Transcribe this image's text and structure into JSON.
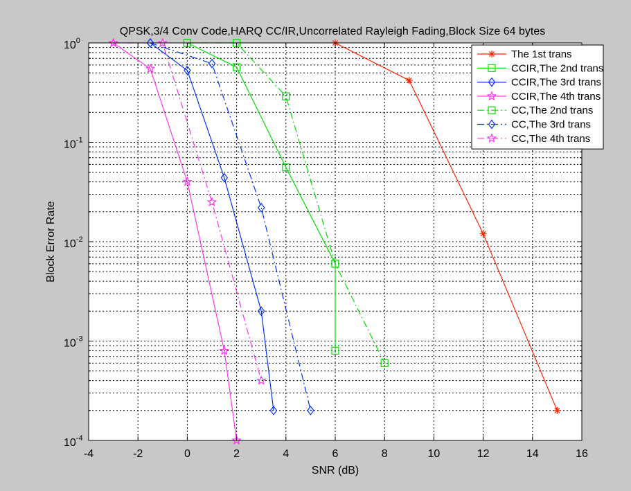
{
  "chart_data": {
    "type": "line",
    "title": "QPSK,3/4 Conv Code,HARQ CC/IR,Uncorrelated Rayleigh Fading,Block Size 64 bytes",
    "xlabel": "SNR (dB)",
    "ylabel": "Block Error Rate",
    "xlim": [
      -4,
      16
    ],
    "ylim": [
      0.0001,
      1
    ],
    "yscale": "log",
    "grid": true,
    "legend_position": "top-right",
    "x_ticks": [
      -4,
      -2,
      0,
      2,
      4,
      6,
      8,
      10,
      12,
      14,
      16
    ],
    "x_tick_labels": [
      "-4",
      "-2",
      "0",
      "2",
      "4",
      "6",
      "8",
      "10",
      "12",
      "14",
      "16"
    ],
    "y_ticks": [
      {
        "value": 1,
        "base": "10",
        "exp": "0"
      },
      {
        "value": 0.1,
        "base": "10",
        "exp": "-1"
      },
      {
        "value": 0.01,
        "base": "10",
        "exp": "-2"
      },
      {
        "value": 0.001,
        "base": "10",
        "exp": "-3"
      },
      {
        "value": 0.0001,
        "base": "10",
        "exp": "-4"
      }
    ],
    "series": [
      {
        "name": "The 1st trans",
        "color": "#ff2200",
        "dash": "solid",
        "marker": "asterisk",
        "x": [
          6,
          9,
          12,
          15
        ],
        "y": [
          1.0,
          0.42,
          0.012,
          0.0002
        ]
      },
      {
        "name": "CCIR,The 2nd trans",
        "color": "#00dd00",
        "dash": "solid",
        "marker": "square",
        "x": [
          0,
          2,
          4,
          6,
          6
        ],
        "y": [
          1.0,
          0.57,
          0.056,
          0.006,
          0.0008
        ]
      },
      {
        "name": "CCIR,The 3rd trans",
        "color": "#0033ee",
        "dash": "solid",
        "marker": "diamond",
        "x": [
          -1.5,
          0,
          1.5,
          3,
          3.5
        ],
        "y": [
          1.0,
          0.53,
          0.044,
          0.002,
          0.0002
        ]
      },
      {
        "name": "CCIR,The 4th trans",
        "color": "#ff33ee",
        "dash": "solid",
        "marker": "star",
        "x": [
          -3,
          -1.5,
          0,
          1.5,
          2
        ],
        "y": [
          1.0,
          0.55,
          0.04,
          0.0008,
          0.0001
        ]
      },
      {
        "name": "CC,The 2nd trans",
        "color": "#00dd00",
        "dash": "dashdot",
        "marker": "square",
        "x": [
          0,
          2,
          4,
          6,
          8
        ],
        "y": [
          1.0,
          1.0,
          0.29,
          0.006,
          0.0006
        ]
      },
      {
        "name": "CC,The 3rd trans",
        "color": "#0033ee",
        "dash": "dashdot",
        "marker": "diamond",
        "x": [
          -1.5,
          1,
          3,
          5
        ],
        "y": [
          1.0,
          0.62,
          0.022,
          0.0002
        ]
      },
      {
        "name": "CC,The 4th trans",
        "color": "#ff33ee",
        "dash": "dashdot",
        "marker": "star",
        "x": [
          -3,
          -1,
          1,
          3
        ],
        "y": [
          1.0,
          1.0,
          0.025,
          0.0004
        ]
      }
    ]
  }
}
